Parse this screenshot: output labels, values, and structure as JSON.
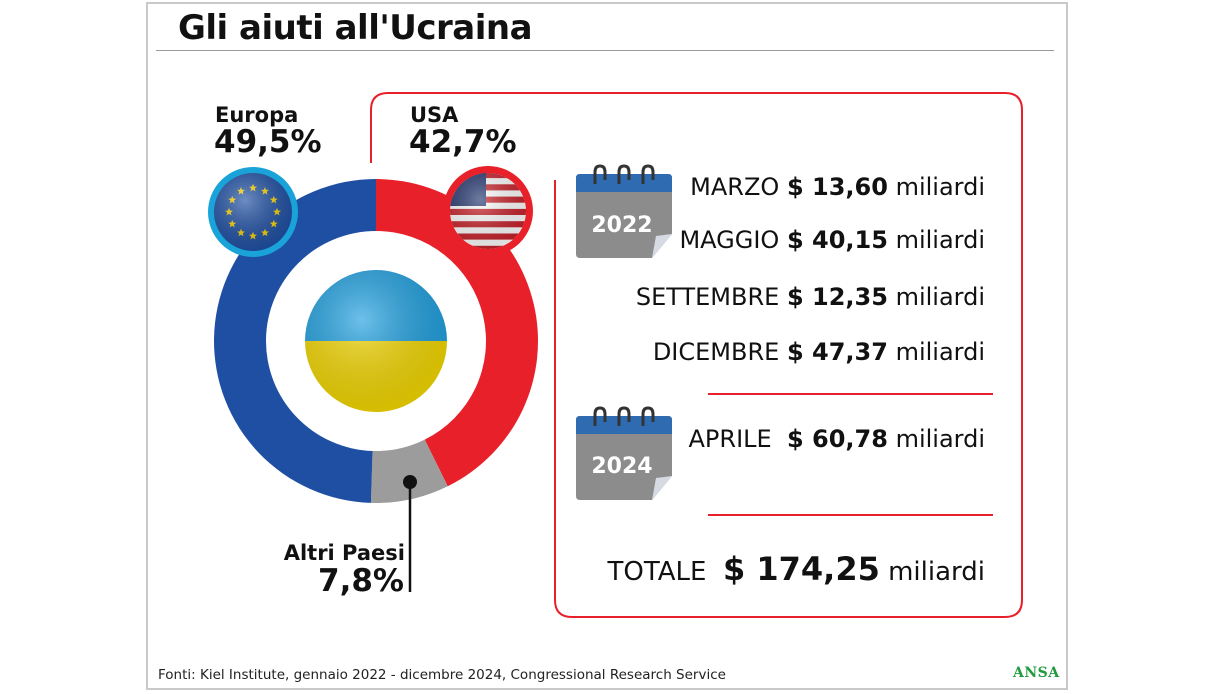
{
  "title": "Gli aiuti all'Ucraina",
  "chart_data": {
    "type": "pie",
    "style": "donut",
    "slices": [
      {
        "label": "USA",
        "value": 42.7,
        "value_label": "42,7%",
        "color": "#e8202a"
      },
      {
        "label": "Altri Paesi",
        "value": 7.8,
        "value_label": "7,8%",
        "color": "#9c9c9c"
      },
      {
        "label": "Europa",
        "value": 49.5,
        "value_label": "49,5%",
        "color": "#1e4fa3"
      }
    ]
  },
  "usa_aid": {
    "years": [
      {
        "year": "2022",
        "entries": [
          {
            "month": "MARZO",
            "amount": "$ 13,60",
            "unit": "miliardi"
          },
          {
            "month": "MAGGIO",
            "amount": "$ 40,15",
            "unit": "miliardi"
          },
          {
            "month": "SETTEMBRE",
            "amount": "$ 12,35",
            "unit": "miliardi"
          },
          {
            "month": "DICEMBRE",
            "amount": "$ 47,37",
            "unit": "miliardi"
          }
        ]
      },
      {
        "year": "2024",
        "entries": [
          {
            "month": "APRILE",
            "amount": "$ 60,78",
            "unit": "miliardi"
          }
        ]
      }
    ],
    "total": {
      "label": "TOTALE",
      "amount": "$ 174,25",
      "unit": "miliardi"
    }
  },
  "footer": "Fonti: Kiel Institute, gennaio 2022 - dicembre 2024, Congressional Research Service",
  "logo": "ANSA",
  "colors": {
    "usa": "#e8202a",
    "europa": "#1e4fa3",
    "altri": "#9c9c9c",
    "calendar": "#8c8c8c",
    "calendar_top": "#2e6bb0"
  }
}
